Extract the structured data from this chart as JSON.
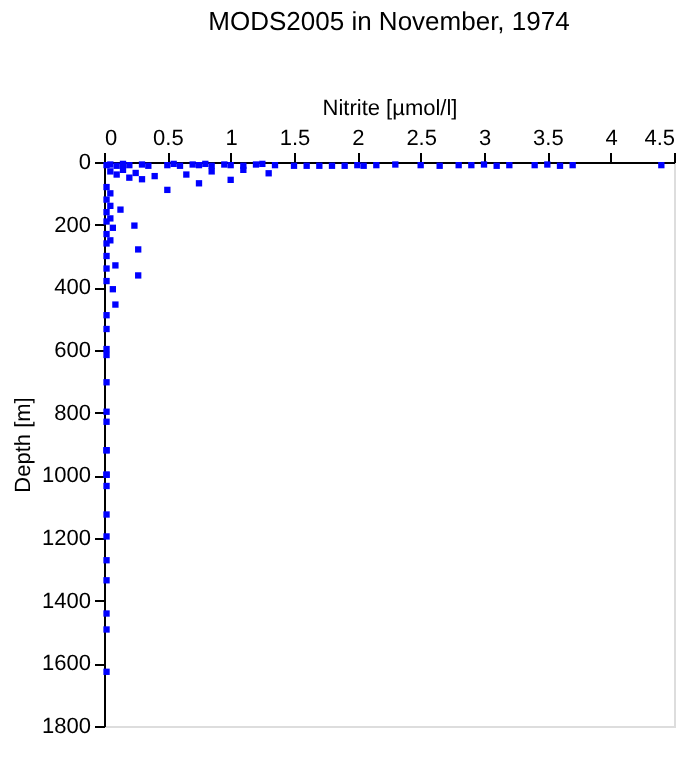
{
  "chart_data": {
    "type": "scatter",
    "title": "MODS2005 in November, 1974",
    "xlabel": "Nitrite [µmol/l]",
    "ylabel": "Depth [m]",
    "xlim": [
      0,
      4.5
    ],
    "xticks": [
      0,
      0.5,
      1,
      1.5,
      2,
      2.5,
      3,
      3.5,
      4,
      4.5
    ],
    "ylim": [
      1800,
      0
    ],
    "yticks": [
      0,
      200,
      400,
      600,
      800,
      1000,
      1200,
      1400,
      1600,
      1800
    ],
    "grid": false,
    "marker": "square",
    "series": [
      {
        "color": "#0000ff",
        "x": [
          0.02,
          0.05,
          0.1,
          0.15,
          0.2,
          0.3,
          0.35,
          0.5,
          0.55,
          0.6,
          0.7,
          0.75,
          0.8,
          0.85,
          0.95,
          1.0,
          1.1,
          1.2,
          1.25,
          1.35,
          1.5,
          1.6,
          1.7,
          1.8,
          1.9,
          2.0,
          2.05,
          2.15,
          2.3,
          2.5,
          2.65,
          2.8,
          2.9,
          3.0,
          3.1,
          3.2,
          3.4,
          3.5,
          3.6,
          3.7,
          4.4,
          0.05,
          0.1,
          0.15,
          0.2,
          0.25,
          0.3,
          0.4,
          0.5,
          0.75,
          1.0,
          1.3,
          1.1,
          0.65,
          0.85,
          0.02,
          0.02,
          0.02,
          0.02,
          0.02,
          0.02,
          0.02,
          0.02,
          0.02,
          0.05,
          0.05,
          0.05,
          0.05,
          0.07,
          0.09,
          0.13,
          0.24,
          0.27,
          0.27,
          0.07,
          0.09,
          0.02,
          0.02,
          0.02,
          0.02,
          0.02,
          0.02,
          0.02,
          0.02,
          0.02,
          0.02,
          0.02,
          0.02,
          0.02,
          0.02,
          0.02,
          0.02,
          0.02,
          0.02,
          0.02
        ],
        "values": [
          10,
          8,
          12,
          6,
          10,
          8,
          12,
          10,
          6,
          12,
          8,
          10,
          6,
          12,
          8,
          10,
          12,
          8,
          6,
          10,
          12,
          12,
          12,
          12,
          12,
          10,
          12,
          10,
          8,
          10,
          12,
          10,
          10,
          8,
          12,
          10,
          10,
          8,
          12,
          10,
          10,
          30,
          40,
          25,
          50,
          35,
          55,
          45,
          89,
          68,
          57,
          36,
          25,
          40,
          30,
          80,
          120,
          160,
          190,
          230,
          260,
          300,
          340,
          380,
          100,
          140,
          180,
          250,
          210,
          330,
          152,
          203,
          279,
          362,
          406,
          455,
          489,
          533,
          597,
          616,
          703,
          797,
          829,
          920,
          998,
          1034,
          1125,
          1195,
          1271,
          1335,
          1441,
          1492,
          1627,
          920,
          998
        ]
      }
    ]
  }
}
